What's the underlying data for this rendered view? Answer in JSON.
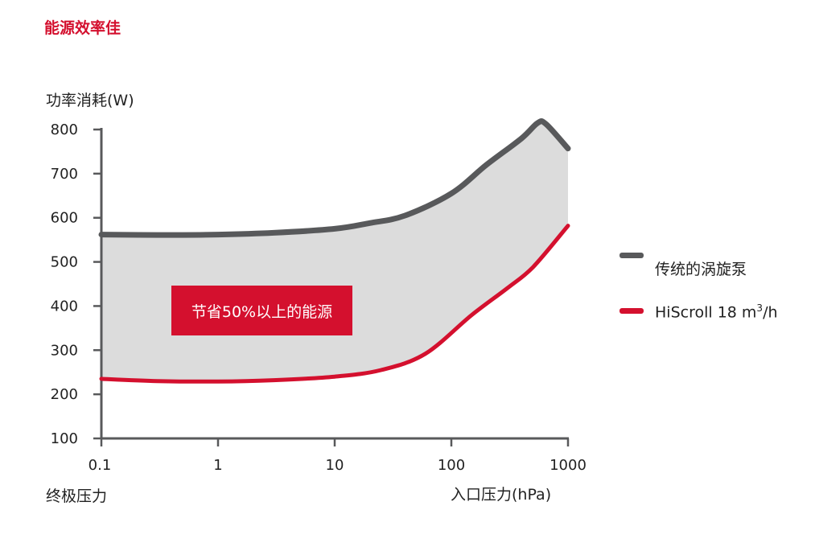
{
  "chart_data": {
    "type": "area",
    "title": "能源效率佳",
    "ylabel": "功率消耗(W)",
    "xlabel_left": "终极压力",
    "xlabel": "入口压力(hPa)",
    "x_scale": "log",
    "xlim": [
      0.1,
      1000
    ],
    "ylim": [
      100,
      800
    ],
    "x_ticks": [
      0.1,
      1,
      10,
      100,
      1000
    ],
    "x_tick_labels": [
      "0.1",
      "1",
      "10",
      "100",
      "1000"
    ],
    "y_ticks": [
      100,
      200,
      300,
      400,
      500,
      600,
      700,
      800
    ],
    "y_tick_labels": [
      "100",
      "200",
      "300",
      "400",
      "500",
      "600",
      "700",
      "800"
    ],
    "grid": false,
    "legend": "right",
    "fill_between_series": true,
    "series": [
      {
        "name": "传统的涡旋泵",
        "color": "#58595b",
        "x": [
          0.1,
          0.3,
          1,
          3,
          10,
          20,
          40,
          100,
          200,
          400,
          550,
          650,
          1000
        ],
        "y": [
          562,
          561,
          562,
          566,
          575,
          588,
          605,
          655,
          720,
          780,
          815,
          812,
          757
        ]
      },
      {
        "name": "HiScroll 18 m³/h",
        "legend_main": "HiScroll 18 m",
        "legend_sup": "3",
        "legend_tail": "/h",
        "color": "#d4102e",
        "x": [
          0.1,
          0.3,
          1,
          3,
          10,
          25,
          60,
          150,
          300,
          500,
          1000
        ],
        "y": [
          235,
          230,
          229,
          232,
          240,
          255,
          292,
          380,
          440,
          488,
          582
        ]
      }
    ],
    "annotation": {
      "text": "节省50%以上的能源",
      "color": "#d4102e"
    },
    "fill_color": "#dcdcdc",
    "axis_color": "#58595b"
  }
}
